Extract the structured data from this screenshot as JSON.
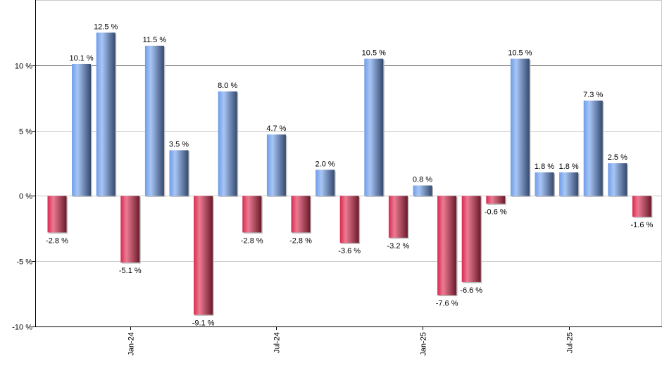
{
  "chart_data": {
    "type": "bar",
    "title": "",
    "xlabel": "",
    "ylabel": "",
    "ylim": [
      -10,
      15
    ],
    "y_ticks": [
      {
        "value": 10,
        "label": "10 %"
      },
      {
        "value": 5,
        "label": "5 %"
      },
      {
        "value": 0,
        "label": "0 %"
      },
      {
        "value": -5,
        "label": "-5 %"
      },
      {
        "value": -10,
        "label": "-10 %"
      }
    ],
    "x_ticks": [
      {
        "index": 3,
        "label": "Jan-24"
      },
      {
        "index": 9,
        "label": "Jul-24"
      },
      {
        "index": 15,
        "label": "Jan-25"
      },
      {
        "index": 21,
        "label": "Jul-25"
      }
    ],
    "values": [
      -2.8,
      10.1,
      12.5,
      -5.1,
      11.5,
      3.5,
      -9.1,
      8.0,
      -2.8,
      4.7,
      -2.8,
      2.0,
      -3.6,
      10.5,
      -3.2,
      0.8,
      -7.6,
      -6.6,
      -0.6,
      10.5,
      1.8,
      1.8,
      7.3,
      2.5,
      -1.6
    ],
    "value_suffix": " %",
    "grid": true,
    "colors": {
      "positive": "#6f9de8",
      "negative": "#d8294f"
    }
  }
}
